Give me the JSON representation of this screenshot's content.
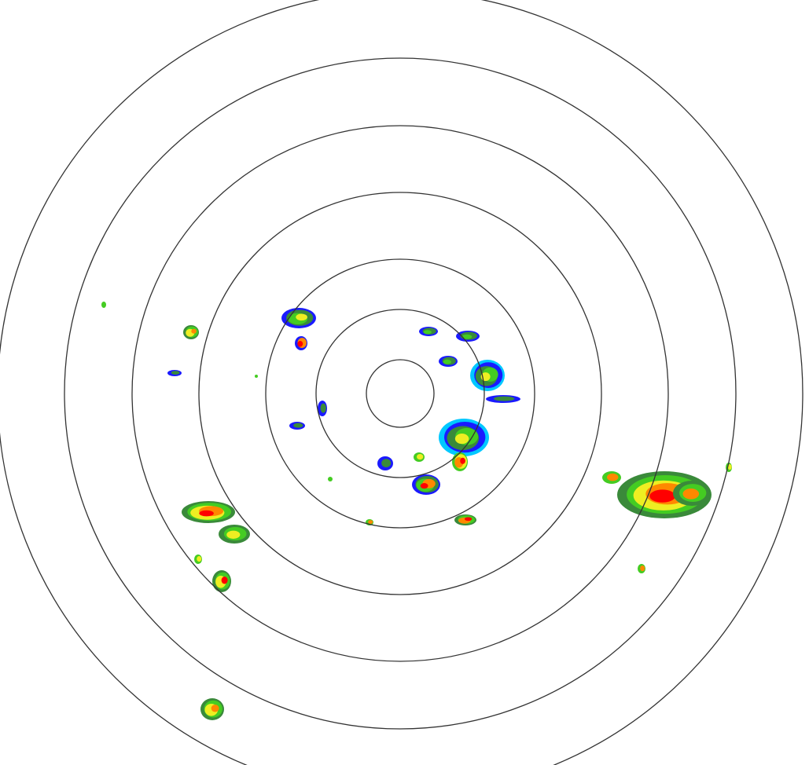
{
  "radar": {
    "range_ring_count": 7,
    "ring_color": "#333333",
    "background_color": "#ffffff",
    "reflectivity_palette": {
      "weak": "#1a1aff",
      "light": "#00c8ff",
      "moderate_low": "#3a8a3a",
      "moderate": "#44cc22",
      "moderate_high": "#eeee22",
      "heavy": "#ff8800",
      "intense": "#ff0000"
    }
  }
}
